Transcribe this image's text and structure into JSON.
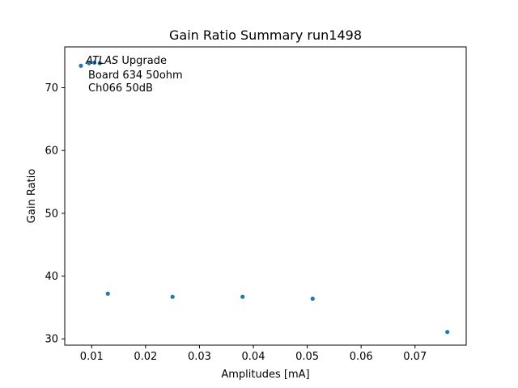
{
  "chart_data": {
    "type": "scatter",
    "title": "Gain Ratio Summary run1498",
    "xlabel": "Amplitudes [mA]",
    "ylabel": "Gain Ratio",
    "xlim": [
      0.005,
      0.0795
    ],
    "ylim": [
      29.0,
      76.5
    ],
    "xticks": [
      0.01,
      0.02,
      0.03,
      0.04,
      0.05,
      0.06,
      0.07
    ],
    "xtick_labels": [
      "0.01",
      "0.02",
      "0.03",
      "0.04",
      "0.05",
      "0.06",
      "0.07"
    ],
    "yticks": [
      30,
      40,
      50,
      60,
      70
    ],
    "ytick_labels": [
      "30",
      "40",
      "50",
      "60",
      "70"
    ],
    "grid": false,
    "marker_color": "#1f77b4",
    "series": [
      {
        "x": [
          0.008,
          0.0095,
          0.0105,
          0.0115,
          0.013,
          0.025,
          0.038,
          0.051,
          0.076
        ],
        "y": [
          73.5,
          73.9,
          74.0,
          73.9,
          37.2,
          36.7,
          36.7,
          36.4,
          31.1
        ]
      }
    ],
    "annotation": {
      "atlas": "ATLAS",
      "upgrade": " Upgrade",
      "line2": "Board 634 50ohm",
      "line3": "Ch066 50dB"
    }
  }
}
